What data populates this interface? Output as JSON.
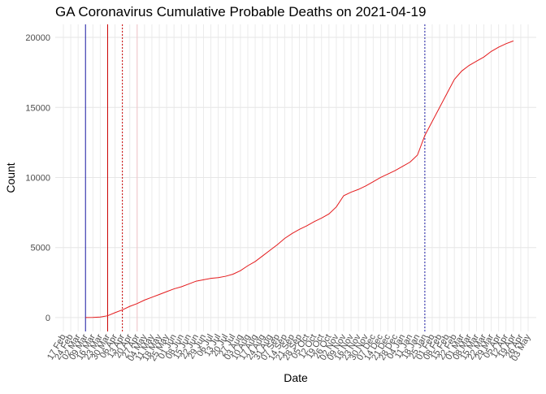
{
  "chart_data": {
    "type": "line",
    "title": "GA Coronavirus Cumulative Probable Deaths on 2021-04-19",
    "x_label": "Date",
    "y_label": "Count",
    "categories": [
      "17 Feb",
      "24 Feb",
      "02 Mar",
      "09 Mar",
      "16 Mar",
      "23 Mar",
      "30 Mar",
      "06 Apr",
      "13 Apr",
      "20 Apr",
      "27 Apr",
      "04 May",
      "11 May",
      "18 May",
      "25 May",
      "01 Jun",
      "08 Jun",
      "15 Jun",
      "22 Jun",
      "29 Jun",
      "06 Jul",
      "13 Jul",
      "20 Jul",
      "27 Jul",
      "03 Aug",
      "10 Aug",
      "17 Aug",
      "24 Aug",
      "31 Aug",
      "07 Sep",
      "14 Sep",
      "21 Sep",
      "28 Sep",
      "05 Oct",
      "12 Oct",
      "19 Oct",
      "26 Oct",
      "02 Nov",
      "09 Nov",
      "16 Nov",
      "23 Nov",
      "30 Nov",
      "07 Dec",
      "14 Dec",
      "21 Dec",
      "28 Dec",
      "04 Jan",
      "11 Jan",
      "18 Jan",
      "25 Jan",
      "01 Feb",
      "08 Feb",
      "15 Feb",
      "22 Feb",
      "01 Mar",
      "08 Mar",
      "15 Mar",
      "22 Mar",
      "29 Mar",
      "05 Apr",
      "12 Apr",
      "19 Apr",
      "26 Apr",
      "03 May"
    ],
    "series": [
      {
        "color": "#e41a1c",
        "values": [
          null,
          null,
          null,
          0,
          10,
          40,
          130,
          350,
          550,
          800,
          1000,
          1250,
          1450,
          1650,
          1850,
          2050,
          2200,
          2400,
          2600,
          2700,
          2800,
          2850,
          2950,
          3100,
          3350,
          3700,
          4000,
          4400,
          4800,
          5200,
          5650,
          6000,
          6300,
          6550,
          6850,
          7100,
          7400,
          7900,
          8700,
          8950,
          9150,
          9400,
          9700,
          10000,
          10250,
          10500,
          10800,
          11100,
          11600,
          13000,
          14000,
          15000,
          16000,
          17000,
          17600,
          18000,
          18300,
          18600,
          19000,
          19300,
          19550,
          19750,
          null,
          null
        ]
      }
    ],
    "vlines": [
      {
        "at": "09 Mar",
        "color": "#1a1aa6",
        "dashed": false
      },
      {
        "at": "30 Mar",
        "color": "#cc0000",
        "dashed": false
      },
      {
        "at": "13 Apr",
        "color": "#cc0000",
        "dashed": true
      },
      {
        "at": "27 Apr",
        "color": "#f2c4c8",
        "dashed": false
      },
      {
        "at": "25 Jan",
        "color": "#1a1aa6",
        "dashed": true
      }
    ],
    "ylim": [
      -990,
      20930
    ],
    "yticks": [
      0,
      5000,
      10000,
      15000,
      20000
    ],
    "grid": true
  }
}
